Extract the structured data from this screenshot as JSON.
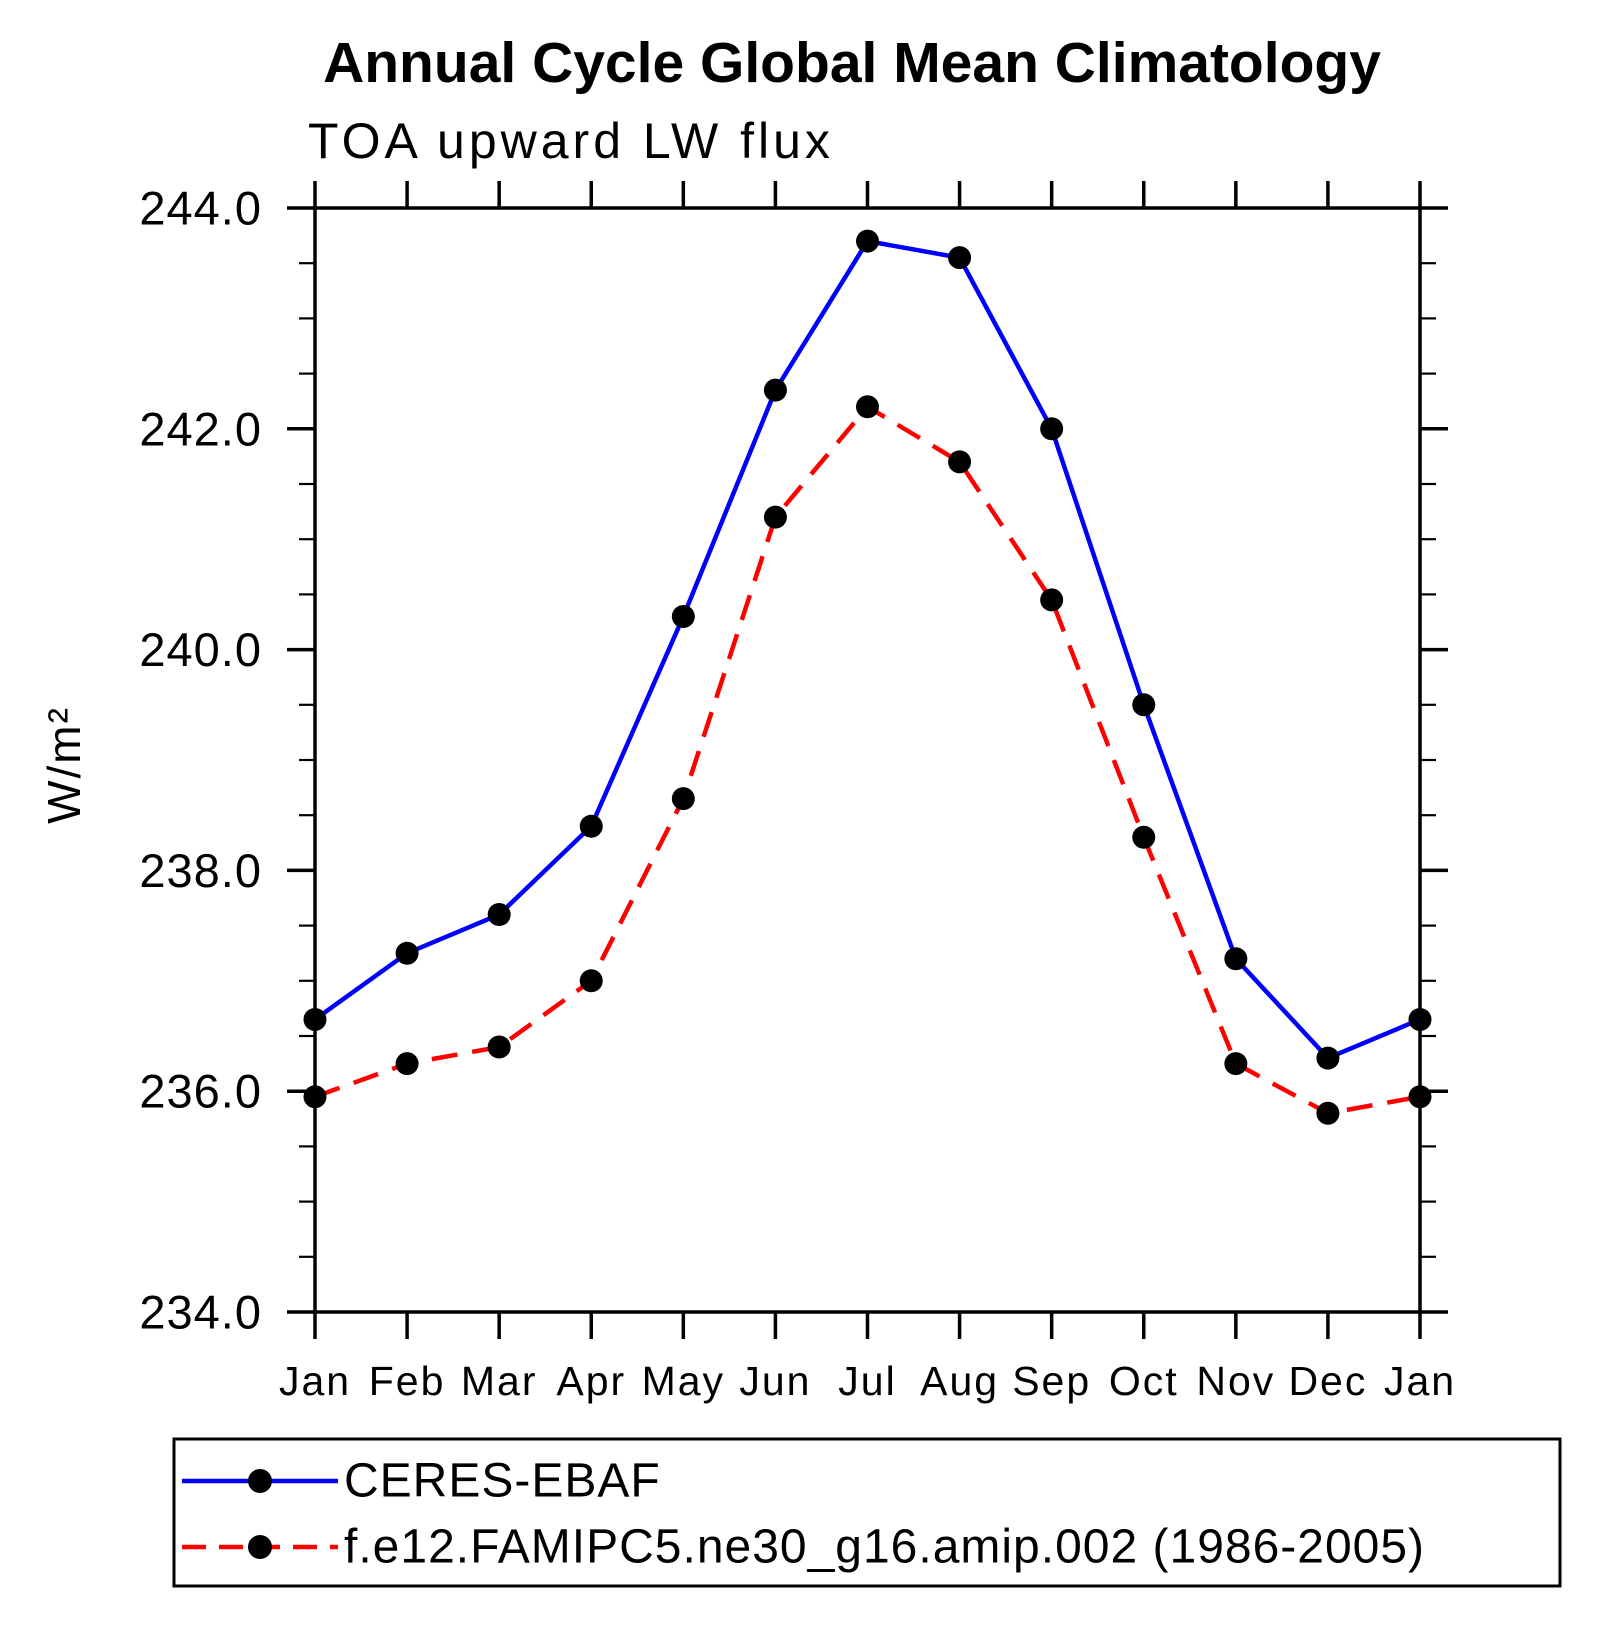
{
  "title": "Annual Cycle Global Mean Climatology",
  "subtitle": "TOA upward LW flux",
  "chart_data": {
    "type": "line",
    "x_categories": [
      "Jan",
      "Feb",
      "Mar",
      "Apr",
      "May",
      "Jun",
      "Jul",
      "Aug",
      "Sep",
      "Oct",
      "Nov",
      "Dec",
      "Jan"
    ],
    "ylabel": "W/m²",
    "ylim": [
      234.0,
      244.0
    ],
    "y_major_tick_step": 2.0,
    "y_minor_tick_step": 0.5,
    "y_tick_labels": [
      "234.0",
      "236.0",
      "238.0",
      "240.0",
      "242.0",
      "244.0"
    ],
    "grid": false,
    "legend_position": "bottom-boxed",
    "marker": "filled-circle",
    "marker_color": "#000000",
    "series": [
      {
        "name": "CERES-EBAF",
        "color": "#0000ff",
        "line_style": "solid",
        "values": [
          236.65,
          237.25,
          237.6,
          238.4,
          240.3,
          242.35,
          243.7,
          243.55,
          242.0,
          239.5,
          237.2,
          236.3,
          236.65
        ]
      },
      {
        "name": "f.e12.FAMIPC5.ne30_g16.amip.002 (1986-2005)",
        "color": "#ff0000",
        "line_style": "dashed",
        "values": [
          235.95,
          236.25,
          236.4,
          237.0,
          238.65,
          241.2,
          242.2,
          241.7,
          240.45,
          238.3,
          236.25,
          235.8,
          235.95
        ]
      }
    ]
  }
}
